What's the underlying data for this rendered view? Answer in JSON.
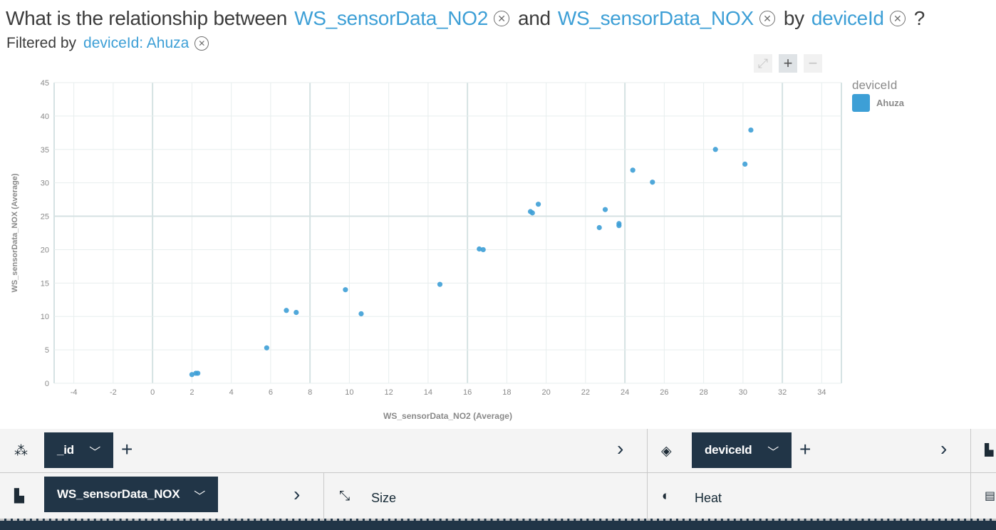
{
  "question": {
    "prefix": "What is the relationship between",
    "measure1": "WS_sensorData_NO2",
    "conj": "and",
    "measure2": "WS_sensorData_NOX",
    "by": "by",
    "group": "deviceId",
    "suffix": "?"
  },
  "filter": {
    "label": "Filtered by",
    "value": "deviceId: Ahuza"
  },
  "tools": {
    "fit_icon": "fit-screen-icon",
    "zoom_in_icon": "plus-icon",
    "zoom_out_icon": "minus-icon"
  },
  "legend": {
    "title": "deviceId",
    "items": [
      {
        "label": "Ahuza",
        "color": "#3d9fd6"
      }
    ]
  },
  "chart_data": {
    "type": "scatter",
    "xlabel": "WS_sensorData_NO2 (Average)",
    "ylabel": "WS_sensorData_NOX (Average)",
    "xlim": [
      -5,
      35
    ],
    "ylim": [
      0,
      45
    ],
    "xticks": [
      -4,
      -2,
      0,
      2,
      4,
      6,
      8,
      10,
      12,
      14,
      16,
      18,
      20,
      22,
      24,
      26,
      28,
      30,
      32,
      34
    ],
    "yticks": [
      0,
      5,
      10,
      15,
      20,
      25,
      30,
      35,
      40,
      45
    ],
    "grid": true,
    "legend_position": "right",
    "series": [
      {
        "name": "Ahuza",
        "color": "#3d9fd6",
        "x": [
          2.0,
          2.2,
          2.3,
          5.8,
          6.8,
          7.3,
          9.8,
          10.6,
          14.6,
          16.6,
          16.8,
          19.2,
          19.3,
          19.6,
          22.7,
          23.0,
          23.7,
          23.7,
          24.4,
          25.4,
          28.6,
          30.1,
          30.4
        ],
        "y": [
          1.3,
          1.5,
          1.5,
          5.3,
          10.9,
          10.6,
          14.0,
          10.4,
          14.8,
          20.1,
          20.0,
          25.7,
          25.5,
          26.8,
          23.3,
          26.0,
          23.9,
          23.6,
          31.9,
          30.1,
          35.0,
          32.8,
          37.9
        ]
      }
    ]
  },
  "shelves": {
    "points_icon": "points-icon",
    "points_value": "_id",
    "color_icon": "paint-bucket-icon",
    "color_value": "deviceId",
    "bars_icon": "bar-chart-icon",
    "yaxis_icon": "y-axis-icon",
    "yaxis_value": "WS_sensorData_NOX",
    "size_icon": "resize-icon",
    "size_label": "Size",
    "heat_icon": "contrast-icon",
    "heat_label": "Heat",
    "table_icon": "table-icon"
  }
}
